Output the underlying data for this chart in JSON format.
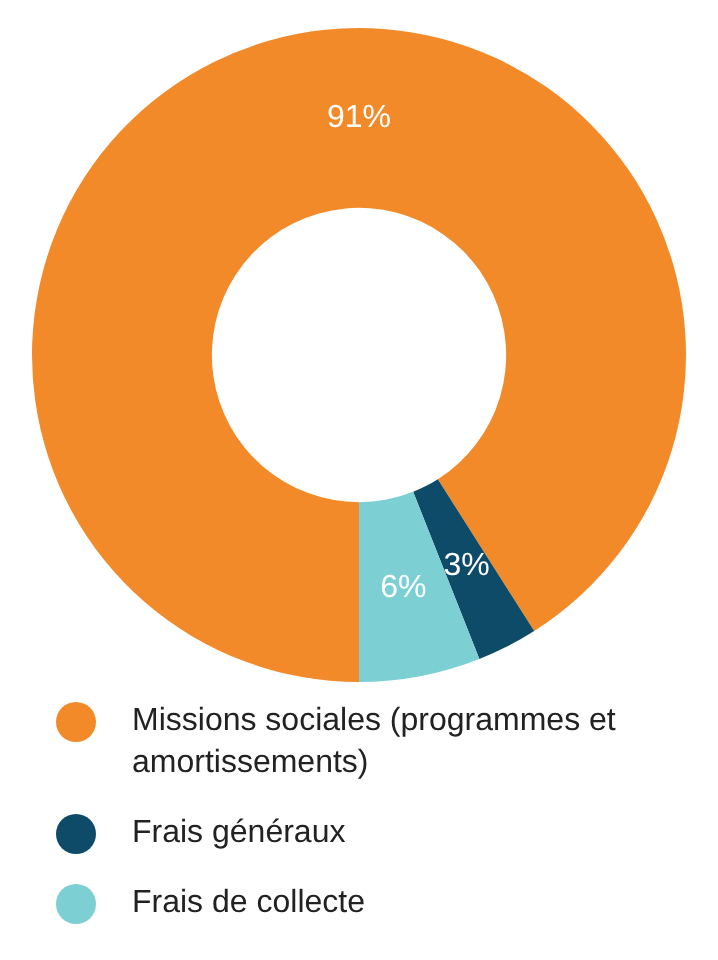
{
  "chart_data": {
    "type": "donut",
    "categories": [
      "Missions sociales (programmes et amortissements)",
      "Frais généraux",
      "Frais de collecte"
    ],
    "values": [
      91,
      3,
      6
    ],
    "colors": [
      "#f28a2a",
      "#0e4b69",
      "#7ccfd2"
    ],
    "value_labels": [
      "91%",
      "3%",
      "6%"
    ],
    "legend": "bottom"
  }
}
